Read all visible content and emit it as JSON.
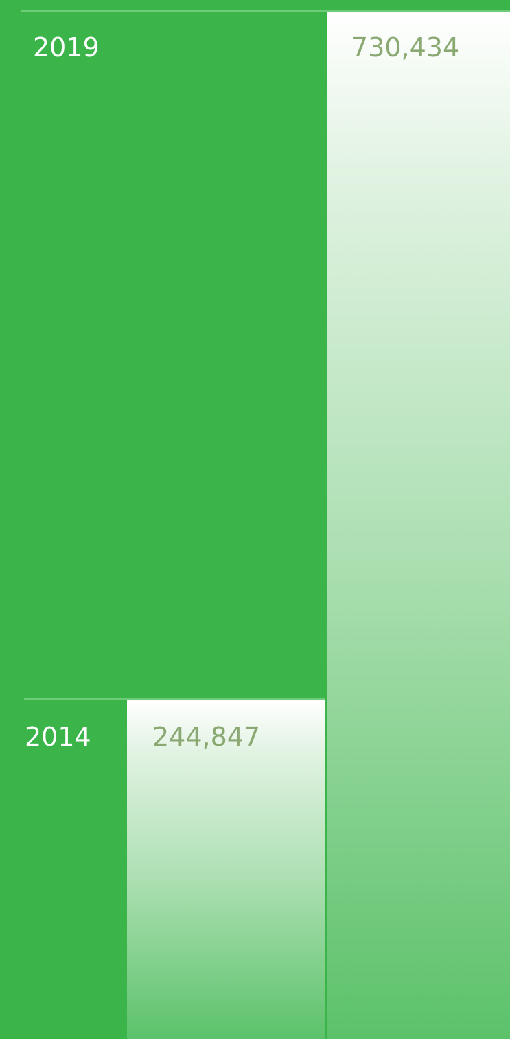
{
  "bars": [
    {
      "year": "2019",
      "value": "730,434"
    },
    {
      "year": "2014",
      "value": "244,847"
    }
  ]
}
